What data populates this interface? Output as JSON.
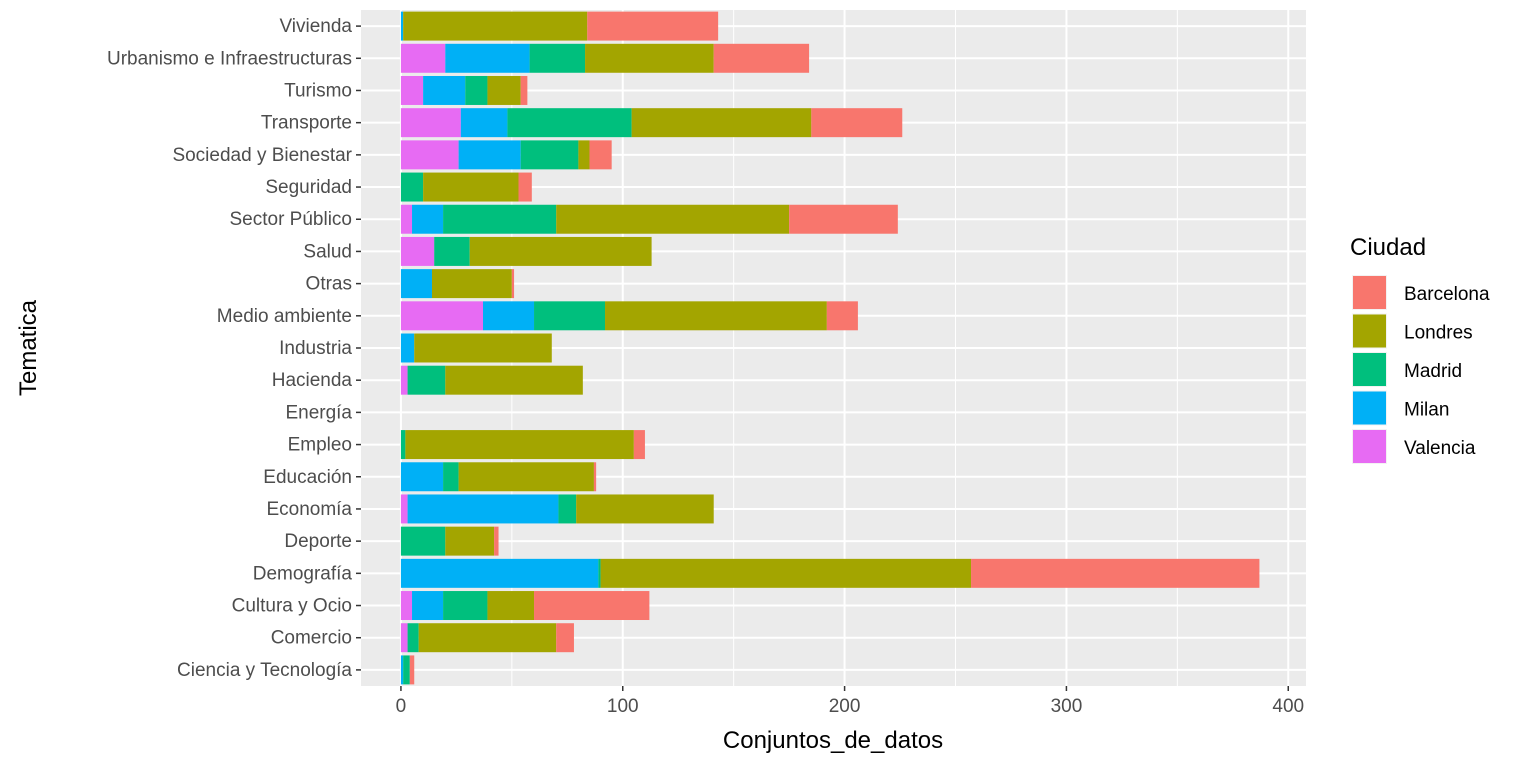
{
  "chart_data": {
    "type": "bar",
    "orientation": "horizontal",
    "stacked": true,
    "xlabel": "Conjuntos_de_datos",
    "ylabel": "Tematica",
    "xlim": [
      -18,
      408
    ],
    "xticks": [
      0,
      100,
      200,
      300,
      400
    ],
    "grid": true,
    "legend": {
      "title": "Ciudad",
      "placement": "right"
    },
    "categories": [
      "Vivienda",
      "Urbanismo e Infraestructuras",
      "Turismo",
      "Transporte",
      "Sociedad y Bienestar",
      "Seguridad",
      "Sector Público",
      "Salud",
      "Otras",
      "Medio ambiente",
      "Industria",
      "Hacienda",
      "Energía",
      "Empleo",
      "Educación",
      "Economía",
      "Deporte",
      "Demografía",
      "Cultura y Ocio",
      "Comercio",
      "Ciencia y Tecnología"
    ],
    "series": [
      {
        "name": "Valencia",
        "color": "#E76BF3",
        "values": [
          0,
          20,
          10,
          27,
          26,
          0,
          5,
          15,
          0,
          37,
          0,
          3,
          0,
          0,
          0,
          3,
          0,
          0,
          5,
          3,
          0
        ]
      },
      {
        "name": "Milan",
        "color": "#00B0F6",
        "values": [
          1,
          38,
          19,
          21,
          28,
          0,
          14,
          0,
          14,
          23,
          6,
          0,
          0,
          0,
          19,
          68,
          0,
          89,
          14,
          0,
          1
        ]
      },
      {
        "name": "Madrid",
        "color": "#00BF7D",
        "values": [
          0,
          25,
          10,
          56,
          26,
          10,
          51,
          16,
          0,
          32,
          0,
          17,
          0,
          2,
          7,
          8,
          20,
          1,
          20,
          5,
          3
        ]
      },
      {
        "name": "Londres",
        "color": "#A3A500",
        "values": [
          83,
          58,
          15,
          81,
          5,
          43,
          105,
          82,
          36,
          100,
          62,
          62,
          0,
          103,
          61,
          62,
          22,
          167,
          21,
          62,
          0
        ]
      },
      {
        "name": "Barcelona",
        "color": "#F8766D",
        "values": [
          59,
          43,
          3,
          41,
          10,
          6,
          49,
          0,
          1,
          14,
          0,
          0,
          0,
          5,
          1,
          0,
          2,
          130,
          52,
          8,
          2
        ]
      }
    ]
  }
}
